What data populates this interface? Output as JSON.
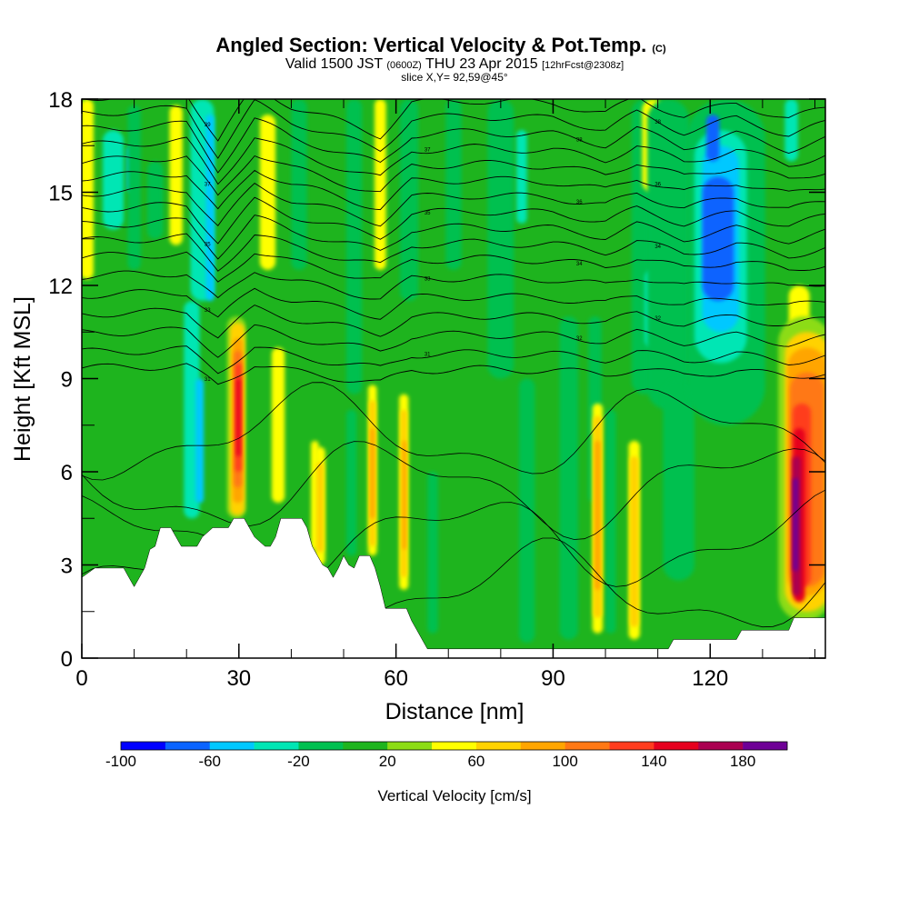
{
  "chart_data": {
    "type": "heatmap",
    "title": "Angled Section: Vertical Velocity & Pot.Temp.",
    "title_tag": "(C)",
    "subtitle_valid": "Valid 1500 JST",
    "subtitle_utc": "(0600Z)",
    "subtitle_date": "THU 23 Apr 2015",
    "subtitle_fcst": "[12hrFcst@2308z]",
    "slice_label": "slice X,Y= 92,59@45°",
    "xlabel": "Distance [nm]",
    "ylabel": "Height [Kft MSL]",
    "xlim": [
      0,
      142
    ],
    "ylim": [
      0,
      18
    ],
    "xticks": [
      0,
      30,
      60,
      90,
      120
    ],
    "yticks": [
      0,
      3,
      6,
      9,
      12,
      15,
      18
    ],
    "x_minor_step": 10,
    "y_minor_step": 1.5,
    "colorbar": {
      "label": "Vertical Velocity [cm/s]",
      "levels": [
        -100,
        -80,
        -60,
        -40,
        -20,
        0,
        20,
        40,
        60,
        80,
        100,
        120,
        140,
        160,
        180,
        200
      ],
      "colors": [
        "#0000ff",
        "#0a64ff",
        "#00c8ff",
        "#00e6b4",
        "#00c050",
        "#1eb41e",
        "#8cdc14",
        "#ffff00",
        "#ffd200",
        "#ffa500",
        "#ff7814",
        "#ff3c1e",
        "#e6001e",
        "#aa0050",
        "#6e0096"
      ],
      "tick_labels": [
        -100,
        -60,
        -20,
        20,
        60,
        100,
        140,
        180
      ]
    },
    "background_color": "#1eb41e",
    "terrain_kft": [
      [
        0,
        2.6
      ],
      [
        2.5,
        2.9
      ],
      [
        8,
        2.9
      ],
      [
        9,
        2.6
      ],
      [
        10,
        2.3
      ],
      [
        11,
        2.6
      ],
      [
        12,
        2.9
      ],
      [
        13,
        3.5
      ],
      [
        14,
        3.6
      ],
      [
        15,
        4.2
      ],
      [
        17,
        4.2
      ],
      [
        18,
        3.9
      ],
      [
        19,
        3.6
      ],
      [
        22,
        3.6
      ],
      [
        23,
        3.9
      ],
      [
        25,
        4.2
      ],
      [
        28,
        4.2
      ],
      [
        29,
        4.5
      ],
      [
        31,
        4.5
      ],
      [
        32,
        4.2
      ],
      [
        33,
        3.9
      ],
      [
        35,
        3.6
      ],
      [
        36,
        3.6
      ],
      [
        37,
        3.9
      ],
      [
        38,
        4.5
      ],
      [
        42,
        4.5
      ],
      [
        43,
        4.2
      ],
      [
        44,
        3.6
      ],
      [
        45,
        3.3
      ],
      [
        46,
        3.0
      ],
      [
        47,
        2.9
      ],
      [
        48,
        2.6
      ],
      [
        49,
        2.9
      ],
      [
        50,
        3.3
      ],
      [
        51,
        3.0
      ],
      [
        52,
        2.9
      ],
      [
        53,
        3.3
      ],
      [
        55,
        3.3
      ],
      [
        56,
        2.9
      ],
      [
        57,
        2.3
      ],
      [
        58,
        1.6
      ],
      [
        62,
        1.6
      ],
      [
        63,
        1.2
      ],
      [
        64,
        0.9
      ],
      [
        65,
        0.6
      ],
      [
        66,
        0.3
      ],
      [
        112,
        0.3
      ],
      [
        113,
        0.6
      ],
      [
        125,
        0.6
      ],
      [
        126,
        0.9
      ],
      [
        135,
        0.9
      ],
      [
        136,
        1.3
      ],
      [
        142,
        1.3
      ]
    ],
    "features": [
      {
        "type": "band",
        "x": 1,
        "width": 2.5,
        "top": 18,
        "bottom": 12.2,
        "value": 40
      },
      {
        "type": "band",
        "x": 6,
        "width": 4,
        "top": 17,
        "bottom": 13.8,
        "value": -40
      },
      {
        "type": "band",
        "x": 9.5,
        "width": 1.8,
        "top": 16.5,
        "bottom": 15,
        "value": -60
      },
      {
        "type": "band",
        "x": 10,
        "width": 2.5,
        "top": 17.8,
        "bottom": 12.5,
        "value": -20
      },
      {
        "type": "band",
        "x": 18,
        "width": 2.5,
        "top": 17.8,
        "bottom": 13.3,
        "value": 40
      },
      {
        "type": "band",
        "x": 14,
        "width": 3,
        "top": 16,
        "bottom": 13.5,
        "value": -20
      },
      {
        "type": "band",
        "x": 23,
        "width": 4.5,
        "top": 18,
        "bottom": 11.5,
        "value": -40
      },
      {
        "type": "band",
        "x": 21,
        "width": 3,
        "top": 11.5,
        "bottom": 4.5,
        "value": -40
      },
      {
        "type": "band",
        "x": 24.5,
        "width": 1.6,
        "top": 17.5,
        "bottom": 11.5,
        "value": -60
      },
      {
        "type": "band",
        "x": 22.5,
        "width": 1.6,
        "top": 9,
        "bottom": 5,
        "value": -60
      },
      {
        "type": "band",
        "x": 29.5,
        "width": 3.5,
        "top": 11,
        "bottom": 4.5,
        "value": 20
      },
      {
        "type": "band",
        "x": 29.7,
        "width": 2.8,
        "top": 10.8,
        "bottom": 4.6,
        "value": 60
      },
      {
        "type": "band",
        "x": 29.8,
        "width": 1.9,
        "top": 10.3,
        "bottom": 5,
        "value": 80
      },
      {
        "type": "band",
        "x": 29.8,
        "width": 1.5,
        "top": 9.9,
        "bottom": 5.5,
        "value": 100
      },
      {
        "type": "band",
        "x": 29.9,
        "width": 1.2,
        "top": 9.5,
        "bottom": 6,
        "value": 120
      },
      {
        "type": "band",
        "x": 29.9,
        "width": 0.8,
        "top": 9,
        "bottom": 6.5,
        "value": 140
      },
      {
        "type": "band",
        "x": 35.5,
        "width": 3,
        "top": 17.5,
        "bottom": 12.5,
        "value": 40
      },
      {
        "type": "band",
        "x": 41.5,
        "width": 3,
        "top": 18,
        "bottom": 12.5,
        "value": -20
      },
      {
        "type": "band",
        "x": 37.5,
        "width": 2.5,
        "top": 10,
        "bottom": 5,
        "value": 40
      },
      {
        "type": "band",
        "x": 44.5,
        "width": 1.5,
        "top": 7,
        "bottom": 3.5,
        "value": 40
      },
      {
        "type": "band",
        "x": 45.5,
        "width": 2,
        "top": 6.8,
        "bottom": 3,
        "value": 40
      },
      {
        "type": "band",
        "x": 45.5,
        "width": 1.4,
        "top": 6.3,
        "bottom": 3.4,
        "value": 60
      },
      {
        "type": "band",
        "x": 52,
        "width": 3,
        "top": 18,
        "bottom": 8.5,
        "value": -20
      },
      {
        "type": "band",
        "x": 51.5,
        "width": 2,
        "top": 8,
        "bottom": 3.3,
        "value": -20
      },
      {
        "type": "band",
        "x": 57,
        "width": 2.2,
        "top": 18,
        "bottom": 12.5,
        "value": 40
      },
      {
        "type": "band",
        "x": 55.5,
        "width": 1.7,
        "top": 8.8,
        "bottom": 3.3,
        "value": 40
      },
      {
        "type": "band",
        "x": 55.5,
        "width": 1.2,
        "top": 8.3,
        "bottom": 3.6,
        "value": 60
      },
      {
        "type": "band",
        "x": 55.5,
        "width": 0.8,
        "top": 7.4,
        "bottom": 4.5,
        "value": 80
      },
      {
        "type": "band",
        "x": 62.5,
        "width": 3.5,
        "top": 18,
        "bottom": 11.5,
        "value": -20
      },
      {
        "type": "band",
        "x": 61.5,
        "width": 1.8,
        "top": 8.5,
        "bottom": 2.2,
        "value": 40
      },
      {
        "type": "band",
        "x": 61.5,
        "width": 1.2,
        "top": 8,
        "bottom": 2.6,
        "value": 60
      },
      {
        "type": "band",
        "x": 61.6,
        "width": 0.7,
        "top": 7,
        "bottom": 3.5,
        "value": 80
      },
      {
        "type": "band",
        "x": 71,
        "width": 3,
        "top": 18,
        "bottom": 12.5,
        "value": -20
      },
      {
        "type": "band",
        "x": 67,
        "width": 2,
        "top": 6,
        "bottom": 0.8,
        "value": -20
      },
      {
        "type": "band",
        "x": 80,
        "width": 5,
        "top": 18,
        "bottom": 9,
        "value": -20
      },
      {
        "type": "band",
        "x": 84,
        "width": 2,
        "top": 17,
        "bottom": 14,
        "value": -40
      },
      {
        "type": "band",
        "x": 85,
        "width": 3,
        "top": 9,
        "bottom": 0.5,
        "value": -20
      },
      {
        "type": "band",
        "x": 93,
        "width": 3.5,
        "top": 11,
        "bottom": 0.6,
        "value": -20
      },
      {
        "type": "band",
        "x": 98,
        "width": 2.5,
        "top": 11,
        "bottom": 5,
        "value": -20
      },
      {
        "type": "band",
        "x": 101,
        "width": 2,
        "top": 8,
        "bottom": 0.8,
        "value": -20
      },
      {
        "type": "band",
        "x": 98.5,
        "width": 2,
        "top": 8.2,
        "bottom": 0.8,
        "value": 40
      },
      {
        "type": "band",
        "x": 98.5,
        "width": 1.6,
        "top": 7.8,
        "bottom": 1.3,
        "value": 60
      },
      {
        "type": "band",
        "x": 98.5,
        "width": 1,
        "top": 7,
        "bottom": 2.2,
        "value": 80
      },
      {
        "type": "band",
        "x": 105.5,
        "width": 2.2,
        "top": 7,
        "bottom": 0.6,
        "value": 40
      },
      {
        "type": "band",
        "x": 105.5,
        "width": 1.6,
        "top": 6.5,
        "bottom": 1,
        "value": 60
      },
      {
        "type": "band",
        "x": 107.5,
        "width": 5,
        "top": 18,
        "bottom": 8.5,
        "value": -20
      },
      {
        "type": "band",
        "x": 109,
        "width": 3,
        "top": 12.5,
        "bottom": 10,
        "value": -40
      },
      {
        "type": "band",
        "x": 109,
        "width": 4,
        "top": 18,
        "bottom": 15,
        "value": 40
      },
      {
        "type": "band",
        "x": 112,
        "width": 8,
        "top": 18,
        "bottom": 8,
        "value": -20
      },
      {
        "type": "band",
        "x": 114,
        "width": 6,
        "top": 9,
        "bottom": 2.5,
        "value": -20
      },
      {
        "type": "band",
        "x": 123,
        "width": 15,
        "top": 18,
        "bottom": 7.5,
        "value": -20
      },
      {
        "type": "band",
        "x": 122,
        "width": 10,
        "top": 17,
        "bottom": 9.5,
        "value": -40
      },
      {
        "type": "band",
        "x": 122,
        "width": 7,
        "top": 16.5,
        "bottom": 10.5,
        "value": -60
      },
      {
        "type": "band",
        "x": 121.5,
        "width": 6,
        "top": 15.5,
        "bottom": 11.5,
        "value": -80
      },
      {
        "type": "band",
        "x": 120.5,
        "width": 2.5,
        "top": 17.5,
        "bottom": 16,
        "value": -80
      },
      {
        "type": "band",
        "x": 135.5,
        "width": 2.5,
        "top": 18,
        "bottom": 16,
        "value": -40
      },
      {
        "type": "band",
        "x": 137,
        "width": 4,
        "top": 12,
        "bottom": 9,
        "value": 40
      },
      {
        "type": "band",
        "x": 138,
        "width": 10,
        "top": 11,
        "bottom": 1.2,
        "value": 20
      },
      {
        "type": "band",
        "x": 138.5,
        "width": 8.5,
        "top": 10.5,
        "bottom": 1.5,
        "value": 60
      },
      {
        "type": "band",
        "x": 138.5,
        "width": 7.5,
        "top": 10,
        "bottom": 2,
        "value": 80
      },
      {
        "type": "band",
        "x": 138.5,
        "width": 6.5,
        "top": 9.2,
        "bottom": 2.3,
        "value": 100
      },
      {
        "type": "band",
        "x": 137.5,
        "width": 3.5,
        "top": 8.2,
        "bottom": 2.3,
        "value": 120
      },
      {
        "type": "band",
        "x": 137,
        "width": 2.2,
        "top": 7.4,
        "bottom": 1.8,
        "value": 140
      },
      {
        "type": "band",
        "x": 136.5,
        "width": 1.6,
        "top": 6.5,
        "bottom": 2,
        "value": 160
      },
      {
        "type": "band",
        "x": 136.3,
        "width": 1,
        "top": 5.8,
        "bottom": 2.8,
        "value": 180
      }
    ],
    "isentropes": {
      "base_levels_kft": [
        9.2,
        9.7,
        10.3,
        10.9,
        11.5,
        12.1,
        12.7,
        13.2,
        13.7,
        14.2,
        14.7,
        15.2,
        15.7,
        16.2,
        16.7,
        17.2,
        17.7
      ],
      "perturbation": [
        [
          0,
          0.4
        ],
        [
          20,
          0.6
        ],
        [
          26,
          -1.2
        ],
        [
          33,
          0.8
        ],
        [
          40,
          0.1
        ],
        [
          57,
          -1.0
        ],
        [
          63,
          0.2
        ],
        [
          75,
          0.3
        ],
        [
          90,
          0.2
        ],
        [
          100,
          -0.2
        ],
        [
          106,
          0.4
        ],
        [
          115,
          -0.3
        ],
        [
          125,
          0.2
        ],
        [
          135,
          -0.4
        ],
        [
          142,
          0
        ]
      ],
      "labels": [
        "31",
        "31",
        "32",
        "32",
        "33",
        "33",
        "34",
        "34",
        "35",
        "35",
        "36",
        "36",
        "37",
        "37",
        "38",
        "38",
        "39"
      ]
    }
  }
}
